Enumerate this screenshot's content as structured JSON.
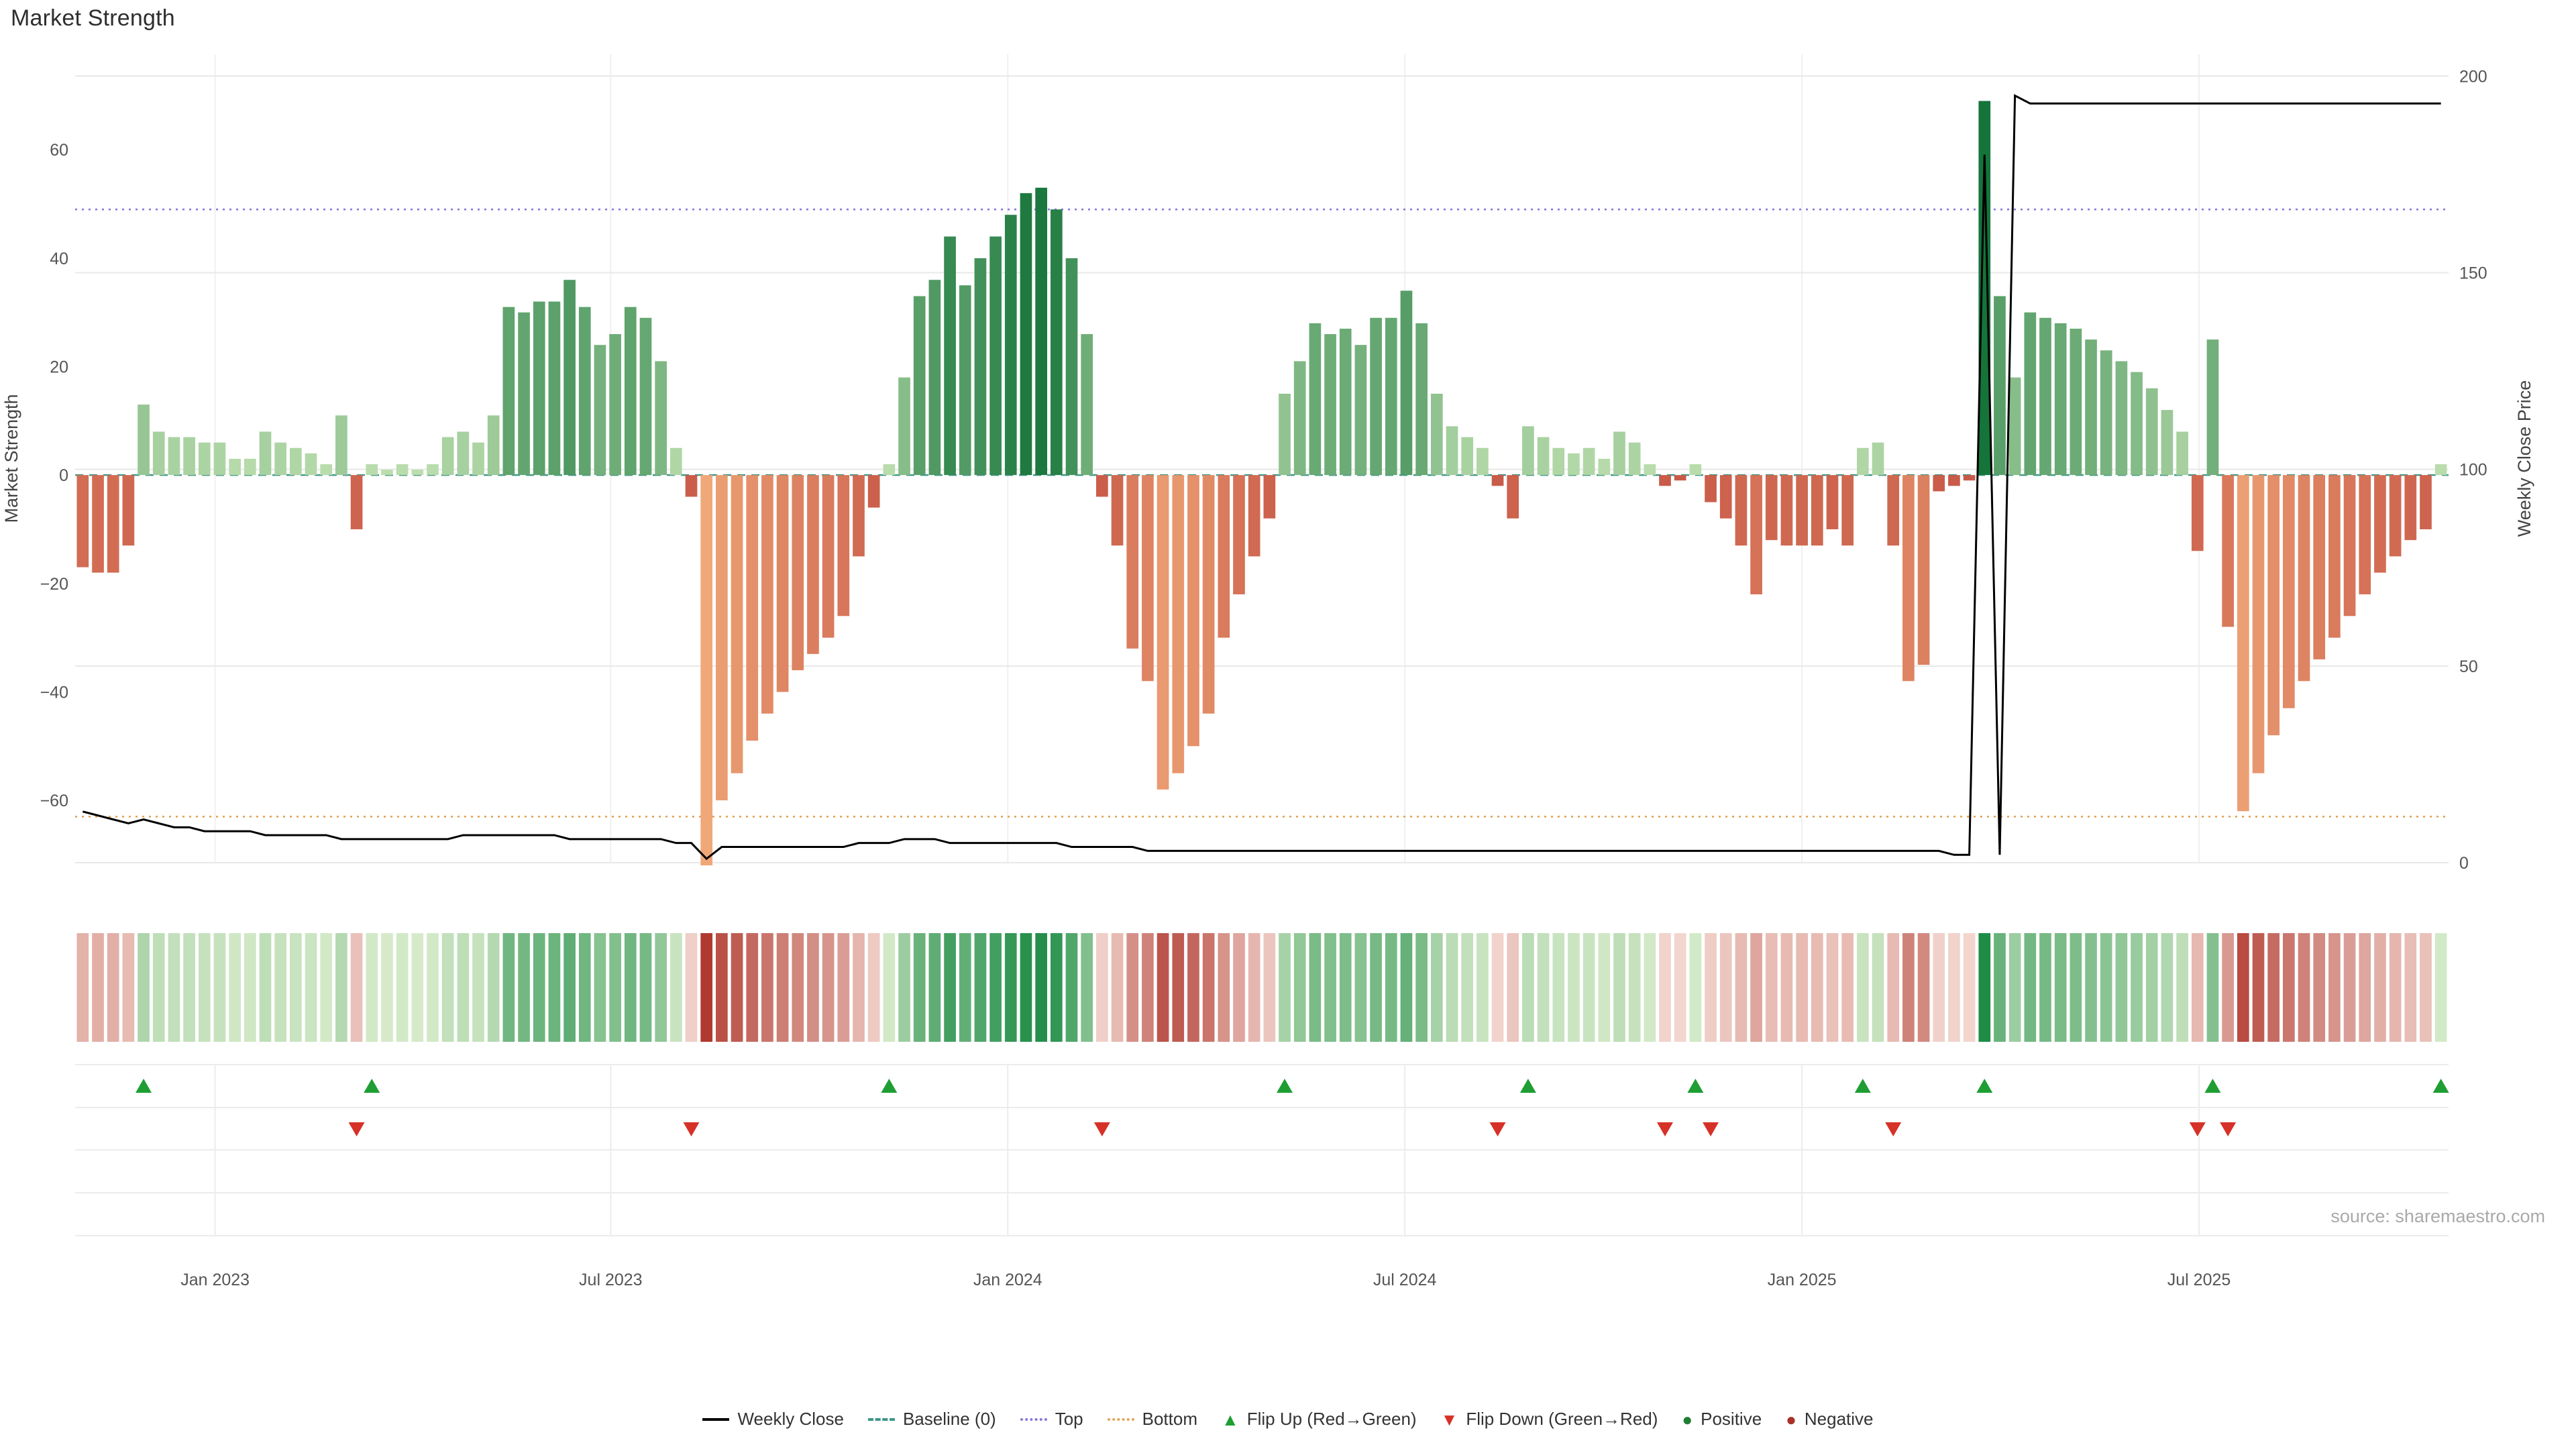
{
  "title": "Market Strength",
  "source": "source: sharemaestro.com",
  "colors": {
    "positive_bar_weak": "#bfe0b0",
    "positive_bar_strong": "#15743a",
    "negative_bar_weak": "#c85948",
    "negative_bar_strong": "#f0a878",
    "heat_pos_weak": "#d9eccc",
    "heat_pos_strong": "#1e8c45",
    "heat_neg_weak": "#f3d8d0",
    "heat_neg_strong": "#b03a30",
    "weekly_close_line": "#000000",
    "baseline": "#3d9688",
    "top_line": "#8678d9",
    "bottom_line": "#e5a35a",
    "flip_up": "#1f9e33",
    "flip_down": "#d63128",
    "grid": "#e8e8e8",
    "grid_faint": "#f0f0f0",
    "axis_text": "#555555",
    "axis_label_text": "#444444"
  },
  "chart_data": {
    "type": "bar",
    "title": "Market Strength",
    "x_unit": "week",
    "n_weeks": 156,
    "x_ticks": [
      {
        "week": 9.2,
        "label": "Jan 2023"
      },
      {
        "week": 35.2,
        "label": "Jul 2023"
      },
      {
        "week": 61.3,
        "label": "Jan 2024"
      },
      {
        "week": 87.4,
        "label": "Jul 2024"
      },
      {
        "week": 113.5,
        "label": "Jan 2025"
      },
      {
        "week": 139.6,
        "label": "Jul 2025"
      }
    ],
    "series": [
      {
        "name": "Market Strength",
        "type": "bar",
        "axis": "left",
        "values": [
          -17,
          -18,
          -18,
          -13,
          13,
          8,
          7,
          7,
          6,
          6,
          3,
          3,
          8,
          6,
          5,
          4,
          2,
          11,
          -10,
          2,
          1,
          2,
          1,
          2,
          7,
          8,
          6,
          11,
          31,
          30,
          32,
          32,
          36,
          31,
          24,
          26,
          31,
          29,
          21,
          5,
          -4,
          -72,
          -60,
          -55,
          -49,
          -44,
          -40,
          -36,
          -33,
          -30,
          -26,
          -15,
          -6,
          2,
          18,
          33,
          36,
          44,
          35,
          40,
          44,
          48,
          52,
          53,
          49,
          40,
          26,
          -4,
          -13,
          -32,
          -38,
          -58,
          -55,
          -50,
          -44,
          -30,
          -22,
          -15,
          -8,
          15,
          21,
          28,
          26,
          27,
          24,
          29,
          29,
          34,
          28,
          15,
          9,
          7,
          5,
          -2,
          -8,
          9,
          7,
          5,
          4,
          5,
          3,
          8,
          6,
          2,
          -2,
          -1,
          2,
          -5,
          -8,
          -13,
          -22,
          -12,
          -13,
          -13,
          -13,
          -10,
          -13,
          5,
          6,
          -13,
          -38,
          -35,
          -3,
          -2,
          -1,
          69,
          33,
          18,
          30,
          29,
          28,
          27,
          25,
          23,
          21,
          19,
          16,
          12,
          8,
          -14,
          25,
          -28,
          -62,
          -55,
          -48,
          -43,
          -38,
          -34,
          -30,
          -26,
          -22,
          -18,
          -15,
          -12,
          -10,
          2
        ]
      },
      {
        "name": "Weekly Close",
        "type": "line",
        "axis": "right",
        "values": [
          13,
          12,
          11,
          10,
          11,
          10,
          9,
          9,
          8,
          8,
          8,
          8,
          7,
          7,
          7,
          7,
          7,
          6,
          6,
          6,
          6,
          6,
          6,
          6,
          6,
          7,
          7,
          7,
          7,
          7,
          7,
          7,
          6,
          6,
          6,
          6,
          6,
          6,
          6,
          5,
          5,
          1,
          4,
          4,
          4,
          4,
          4,
          4,
          4,
          4,
          4,
          5,
          5,
          5,
          6,
          6,
          6,
          5,
          5,
          5,
          5,
          5,
          5,
          5,
          5,
          4,
          4,
          4,
          4,
          4,
          3,
          3,
          3,
          3,
          3,
          3,
          3,
          3,
          3,
          3,
          3,
          3,
          3,
          3,
          3,
          3,
          3,
          3,
          3,
          3,
          3,
          3,
          3,
          3,
          3,
          3,
          3,
          3,
          3,
          3,
          3,
          3,
          3,
          3,
          3,
          3,
          3,
          3,
          3,
          3,
          3,
          3,
          3,
          3,
          3,
          3,
          3,
          3,
          3,
          3,
          3,
          3,
          3,
          2,
          2,
          180,
          2,
          195,
          193,
          193,
          193,
          193,
          193,
          193,
          193,
          193,
          193,
          193,
          193,
          193,
          193,
          193,
          193,
          193,
          193,
          193,
          193,
          193,
          193,
          193,
          193,
          193,
          193,
          193,
          193,
          193
        ]
      }
    ],
    "reference_lines": {
      "baseline": 0,
      "top": 49,
      "bottom": -63
    },
    "left_axis": {
      "label": "Market Strength",
      "ticks": [
        60,
        40,
        20,
        0,
        -20,
        -40,
        -60
      ],
      "min": -71.5,
      "max": 77.6
    },
    "right_axis": {
      "label": "Weekly Close Price",
      "ticks": [
        200,
        150,
        100,
        50,
        0
      ],
      "min": 0,
      "max": 205.5
    },
    "flip_up_weeks": [
      4,
      19,
      53,
      79,
      95,
      106,
      117,
      125,
      140,
      155
    ],
    "flip_down_weeks": [
      18,
      40,
      67,
      93,
      104,
      107,
      119,
      139,
      141
    ],
    "heatmap": {
      "note": "weekly strength color strip, colors follow bar series sign and magnitude"
    }
  },
  "legend": {
    "items": [
      {
        "label": "Weekly Close",
        "swatch": "solid",
        "color": "#000000"
      },
      {
        "label": "Baseline (0)",
        "swatch": "dashed",
        "color": "#3d9688"
      },
      {
        "label": "Top",
        "swatch": "dotted",
        "color": "#8678d9"
      },
      {
        "label": "Bottom",
        "swatch": "dotted",
        "color": "#e5a35a"
      },
      {
        "label": "Flip Up (Red→Green)",
        "swatch": "triangle-up",
        "color": "#1f9e33"
      },
      {
        "label": "Flip Down (Green→Red)",
        "swatch": "triangle-down",
        "color": "#d63128"
      },
      {
        "label": "Positive",
        "swatch": "dot",
        "color": "#1e7e34"
      },
      {
        "label": "Negative",
        "swatch": "dot",
        "color": "#a8322a"
      }
    ]
  }
}
